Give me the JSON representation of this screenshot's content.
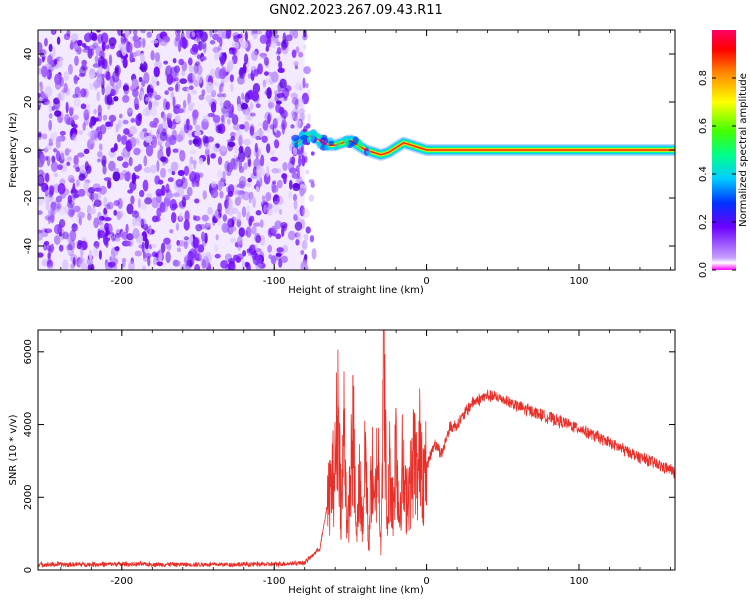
{
  "title": "GN02.2023.267.09.43.R11",
  "chart_data": [
    {
      "type": "heatmap",
      "title": "GN02.2023.267.09.43.R11",
      "xlabel": "Height of straight line (km)",
      "ylabel": "Frequency (Hz)",
      "xlim": [
        -255,
        163
      ],
      "ylim": [
        -50,
        50
      ],
      "xticks": [
        -200,
        -100,
        0,
        100
      ],
      "yticks": [
        -40,
        -20,
        0,
        20,
        40
      ],
      "noise_region_x": [
        -255,
        -80
      ],
      "signal_track": {
        "x": [
          -85,
          -80,
          -75,
          -70,
          -65,
          -60,
          -55,
          -50,
          -45,
          -40,
          -35,
          -30,
          -25,
          -20,
          -15,
          -10,
          -5,
          0,
          10,
          20,
          40,
          60,
          80,
          100,
          120,
          140,
          163
        ],
        "freq": [
          3,
          5,
          6,
          4,
          2,
          2,
          3,
          4,
          2,
          0,
          -1,
          -2,
          -1,
          1,
          3,
          2,
          1,
          0,
          0,
          0,
          0,
          0,
          0,
          0,
          0,
          0,
          0
        ]
      },
      "colorbar": {
        "label": "Normalized spectral amplitude",
        "range": [
          0,
          1
        ],
        "ticks": [
          0.0,
          0.2,
          0.4,
          0.6,
          0.8
        ],
        "tick_labels": [
          "0.0",
          "0.2",
          "0.4",
          "0.6",
          "0.8"
        ]
      }
    },
    {
      "type": "line",
      "xlabel": "Height of straight line (km)",
      "ylabel": "SNR (10 * v/v)",
      "xlim": [
        -255,
        163
      ],
      "ylim": [
        0,
        6600
      ],
      "xticks": [
        -200,
        -100,
        0,
        100
      ],
      "yticks": [
        0,
        2000,
        4000,
        6000
      ],
      "color": "#e8302a",
      "series": [
        {
          "x": [
            -255,
            -200,
            -150,
            -100,
            -80,
            -70,
            -65,
            -60,
            -58,
            -56,
            -54,
            -52,
            -50,
            -48,
            -46,
            -44,
            -42,
            -40,
            -38,
            -36,
            -34,
            -32,
            -30,
            -28,
            -26,
            -24,
            -22,
            -20,
            -18,
            -16,
            -14,
            -12,
            -10,
            -8,
            -6,
            -4,
            -2,
            0,
            5,
            10,
            15,
            20,
            25,
            30,
            35,
            40,
            50,
            60,
            80,
            100,
            120,
            140,
            163
          ],
          "values": [
            150,
            160,
            150,
            160,
            200,
            600,
            1800,
            2800,
            4600,
            1500,
            4200,
            900,
            2500,
            3800,
            700,
            2600,
            1200,
            3300,
            600,
            2900,
            1500,
            3500,
            800,
            6200,
            1000,
            3000,
            1600,
            3700,
            1400,
            2900,
            1900,
            2300,
            2400,
            3400,
            2300,
            3700,
            2500,
            2800,
            3500,
            3200,
            3900,
            4000,
            4300,
            4600,
            4700,
            4800,
            4700,
            4500,
            4200,
            3900,
            3500,
            3100,
            2700
          ]
        }
      ]
    }
  ]
}
